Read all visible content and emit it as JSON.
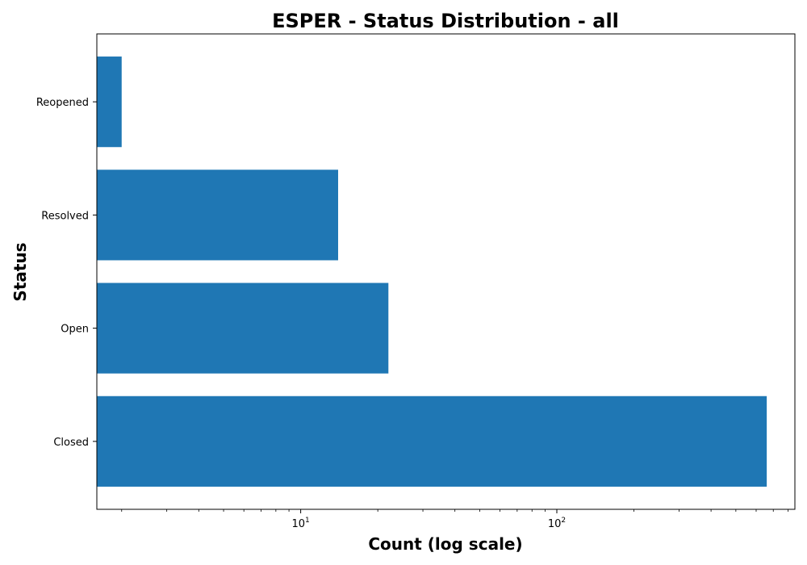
{
  "chart_data": {
    "type": "bar",
    "orientation": "horizontal",
    "title": "ESPER - Status Distribution - all",
    "xlabel": "Count (log scale)",
    "ylabel": "Status",
    "x_scale": "log",
    "xlim": [
      1.6,
      850
    ],
    "categories": [
      "Closed",
      "Open",
      "Resolved",
      "Reopened"
    ],
    "values": [
      660,
      22,
      14,
      2
    ],
    "x_tick_labels": [
      {
        "base": "10",
        "exp": "1",
        "value": 10
      },
      {
        "base": "10",
        "exp": "2",
        "value": 100
      }
    ],
    "bar_color": "#1f77b4",
    "grid": false,
    "legend": "none"
  }
}
